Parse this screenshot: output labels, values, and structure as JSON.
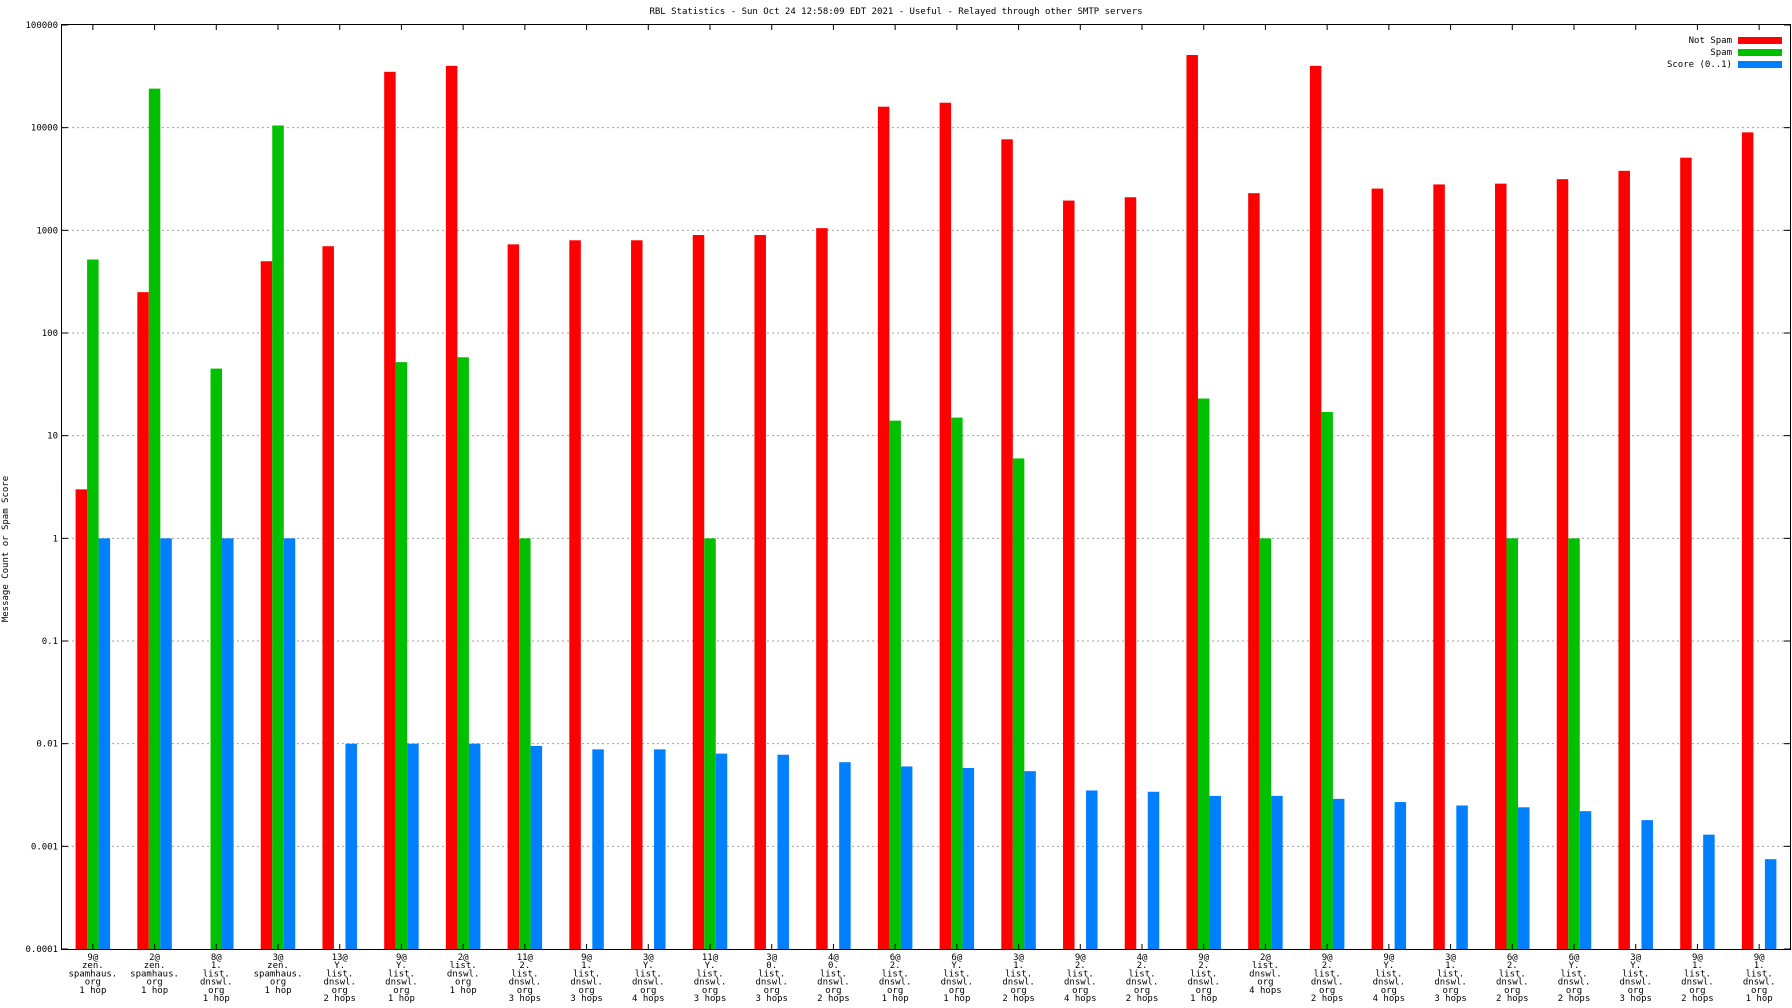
{
  "chart_data": {
    "type": "bar",
    "title": "RBL Statistics - Sun Oct 24 12:58:09 EDT 2021 - Useful - Relayed through other SMTP servers",
    "ylabel": "Message Count or Spam Score",
    "xlabel": "",
    "yscale": "log",
    "ylim": [
      0.0001,
      100000
    ],
    "yticks": [
      "0.0001",
      "0.001",
      "0.01",
      "0.1",
      "1",
      "10",
      "100",
      "1000",
      "10000",
      "100000"
    ],
    "grid": true,
    "legend_position": "top-right",
    "categories": [
      [
        "9@",
        "zen.",
        "spamhaus.",
        "org",
        "1 hop"
      ],
      [
        "2@",
        "zen.",
        "spamhaus.",
        "org",
        "1 hop"
      ],
      [
        "8@",
        "1.",
        "list.",
        "dnswl.",
        "org",
        "1 hop"
      ],
      [
        "3@",
        "zen.",
        "spamhaus.",
        "org",
        "1 hop"
      ],
      [
        "13@",
        "Y.",
        "list.",
        "dnswl.",
        "org",
        "2 hops"
      ],
      [
        "9@",
        "Y.",
        "list.",
        "dnswl.",
        "org",
        "1 hop"
      ],
      [
        "2@",
        "list.",
        "dnswl.",
        "org",
        "1 hop"
      ],
      [
        "11@",
        "2.",
        "list.",
        "dnswl.",
        "org",
        "3 hops"
      ],
      [
        "9@",
        "1.",
        "list.",
        "dnswl.",
        "org",
        "3 hops"
      ],
      [
        "3@",
        "Y.",
        "list.",
        "dnswl.",
        "org",
        "4 hops"
      ],
      [
        "11@",
        "Y.",
        "list.",
        "dnswl.",
        "org",
        "3 hops"
      ],
      [
        "3@",
        "0.",
        "list.",
        "dnswl.",
        "org",
        "3 hops"
      ],
      [
        "4@",
        "0.",
        "list.",
        "dnswl.",
        "org",
        "2 hops"
      ],
      [
        "6@",
        "2.",
        "list.",
        "dnswl.",
        "org",
        "1 hop"
      ],
      [
        "6@",
        "Y.",
        "list.",
        "dnswl.",
        "org",
        "1 hop"
      ],
      [
        "3@",
        "1.",
        "list.",
        "dnswl.",
        "org",
        "2 hops"
      ],
      [
        "9@",
        "2.",
        "list.",
        "dnswl.",
        "org",
        "4 hops"
      ],
      [
        "4@",
        "2.",
        "list.",
        "dnswl.",
        "org",
        "2 hops"
      ],
      [
        "9@",
        "2.",
        "list.",
        "dnswl.",
        "org",
        "1 hop"
      ],
      [
        "2@",
        "list.",
        "dnswl.",
        "org",
        "4 hops"
      ],
      [
        "9@",
        "2.",
        "list.",
        "dnswl.",
        "org",
        "2 hops"
      ],
      [
        "9@",
        "Y.",
        "list.",
        "dnswl.",
        "org",
        "4 hops"
      ],
      [
        "3@",
        "1.",
        "list.",
        "dnswl.",
        "org",
        "3 hops"
      ],
      [
        "6@",
        "2.",
        "list.",
        "dnswl.",
        "org",
        "2 hops"
      ],
      [
        "6@",
        "Y.",
        "list.",
        "dnswl.",
        "org",
        "2 hops"
      ],
      [
        "3@",
        "Y.",
        "list.",
        "dnswl.",
        "org",
        "3 hops"
      ],
      [
        "9@",
        "1.",
        "list.",
        "dnswl.",
        "org",
        "2 hops"
      ],
      [
        "9@",
        "1.",
        "list.",
        "dnswl.",
        "org",
        "1 hop"
      ]
    ],
    "series": [
      {
        "name": "Not Spam",
        "color": "#ff0000",
        "values": [
          3,
          250,
          null,
          500,
          700,
          35000,
          40000,
          730,
          800,
          800,
          900,
          900,
          1050,
          16000,
          17500,
          7700,
          1950,
          2100,
          51000,
          2300,
          40000,
          2550,
          2800,
          2850,
          3150,
          3800,
          5100,
          9000
        ]
      },
      {
        "name": "Spam",
        "color": "#00c000",
        "values": [
          520,
          24000,
          45,
          10500,
          null,
          52,
          58,
          1,
          null,
          null,
          1,
          null,
          null,
          14,
          15,
          6,
          null,
          null,
          23,
          1,
          17,
          null,
          null,
          1,
          1,
          null,
          null,
          null
        ]
      },
      {
        "name": "Score (0..1)",
        "color": "#0080ff",
        "values": [
          1,
          1,
          1,
          1,
          0.01,
          0.01,
          0.01,
          0.0095,
          0.0088,
          0.0088,
          0.008,
          0.0078,
          0.0066,
          0.006,
          0.0058,
          0.0054,
          0.0035,
          0.0034,
          0.0031,
          0.0031,
          0.0029,
          0.0027,
          0.0025,
          0.0024,
          0.0022,
          0.0018,
          0.0013,
          0.00075
        ]
      }
    ]
  }
}
